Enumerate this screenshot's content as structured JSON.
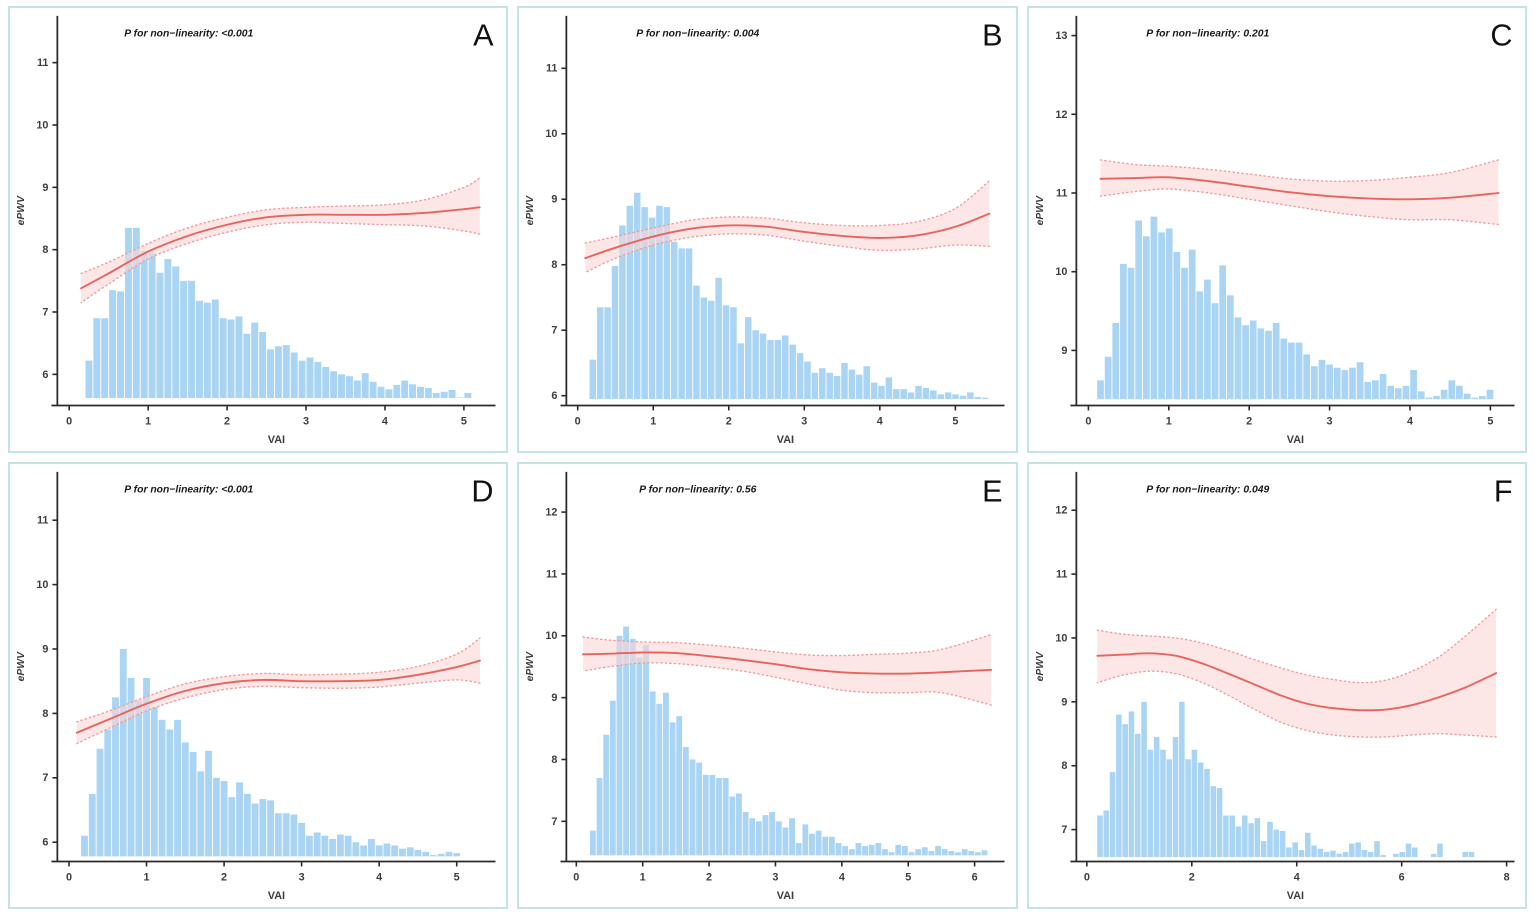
{
  "figure": {
    "background": "#ffffff",
    "panel_border_color": "#c4e3e3"
  },
  "colors": {
    "bar_fill": "#a9d4f4",
    "spline_line": "#e8635c",
    "band_fill": "#fad6d6",
    "band_opacity": 0.6,
    "band_edge": "#ee9e9e",
    "axis_line": "#2a2a2a",
    "tick_text": "#3d3d3d",
    "title_text": "#1a1a1a",
    "letter_text": "#111111"
  },
  "chart_data": [
    {
      "type": "line",
      "label": "A",
      "title": "P for non−linearity: <0.001",
      "xlabel": "VAI",
      "ylabel": "ePWV",
      "xlim": [
        -0.15,
        5.4
      ],
      "ylim": [
        5.5,
        11.75
      ],
      "xticks": [
        0,
        1,
        2,
        3,
        4,
        5
      ],
      "yticks": [
        6,
        7,
        8,
        9,
        10,
        11
      ],
      "legend": "none",
      "grid": false,
      "histogram": {
        "start": 0.25,
        "bin_width": 0.1,
        "baseline": 5.62,
        "heights": [
          6.22,
          6.9,
          6.9,
          7.35,
          7.33,
          8.35,
          8.35,
          7.98,
          7.95,
          7.63,
          7.85,
          7.73,
          7.5,
          7.5,
          7.18,
          7.15,
          7.2,
          6.9,
          6.88,
          6.93,
          6.65,
          6.83,
          6.68,
          6.4,
          6.45,
          6.47,
          6.35,
          6.22,
          6.27,
          6.2,
          6.12,
          6.05,
          6.0,
          5.97,
          5.9,
          6.02,
          5.88,
          5.8,
          5.76,
          5.83,
          5.9,
          5.84,
          5.8,
          5.78,
          5.7,
          5.72,
          5.75,
          5.63,
          5.7
        ]
      },
      "spline": {
        "x": [
          0.15,
          0.5,
          1.0,
          1.5,
          2.0,
          2.5,
          3.0,
          3.5,
          4.0,
          4.5,
          5.0,
          5.2
        ],
        "y": [
          7.38,
          7.62,
          7.97,
          8.22,
          8.4,
          8.52,
          8.56,
          8.56,
          8.56,
          8.59,
          8.65,
          8.68
        ],
        "lower": [
          7.15,
          7.45,
          7.85,
          8.1,
          8.28,
          8.4,
          8.44,
          8.42,
          8.4,
          8.38,
          8.3,
          8.25
        ],
        "upper": [
          7.62,
          7.8,
          8.1,
          8.35,
          8.52,
          8.64,
          8.68,
          8.7,
          8.72,
          8.8,
          9.0,
          9.15
        ]
      }
    },
    {
      "type": "line",
      "label": "B",
      "title": "P for non−linearity: 0.004",
      "xlabel": "VAI",
      "ylabel": "ePWV",
      "xlim": [
        -0.15,
        5.65
      ],
      "ylim": [
        5.85,
        11.8
      ],
      "xticks": [
        0,
        1,
        2,
        3,
        4,
        5
      ],
      "yticks": [
        6,
        7,
        8,
        9,
        10,
        11
      ],
      "legend": "none",
      "grid": false,
      "histogram": {
        "start": 0.2,
        "bin_width": 0.098,
        "baseline": 5.95,
        "heights": [
          6.55,
          7.35,
          7.35,
          7.98,
          8.6,
          8.9,
          9.1,
          8.88,
          8.72,
          8.9,
          8.88,
          8.35,
          8.25,
          8.25,
          7.68,
          7.5,
          7.45,
          7.8,
          7.38,
          7.35,
          6.8,
          7.2,
          7.0,
          6.95,
          6.85,
          6.85,
          6.92,
          6.78,
          6.65,
          6.52,
          6.35,
          6.42,
          6.35,
          6.3,
          6.5,
          6.4,
          6.32,
          6.45,
          6.2,
          6.15,
          6.28,
          6.1,
          6.1,
          6.05,
          6.15,
          6.12,
          6.08,
          6.02,
          6.05,
          6.02,
          6.0,
          6.05,
          5.98,
          5.97
        ]
      },
      "spline": {
        "x": [
          0.1,
          0.5,
          1.0,
          1.5,
          2.0,
          2.5,
          3.0,
          3.5,
          4.0,
          4.5,
          5.0,
          5.45
        ],
        "y": [
          8.1,
          8.26,
          8.43,
          8.55,
          8.6,
          8.58,
          8.5,
          8.44,
          8.41,
          8.45,
          8.58,
          8.78
        ],
        "lower": [
          7.88,
          8.1,
          8.3,
          8.42,
          8.47,
          8.45,
          8.36,
          8.28,
          8.22,
          8.24,
          8.3,
          8.28
        ],
        "upper": [
          8.33,
          8.43,
          8.56,
          8.68,
          8.73,
          8.71,
          8.64,
          8.6,
          8.6,
          8.66,
          8.86,
          9.28
        ]
      }
    },
    {
      "type": "line",
      "label": "C",
      "title": "P for non−linearity: 0.201",
      "xlabel": "VAI",
      "ylabel": "ePWV",
      "xlim": [
        -0.15,
        5.3
      ],
      "ylim": [
        8.3,
        13.25
      ],
      "xticks": [
        0,
        1,
        2,
        3,
        4,
        5
      ],
      "yticks": [
        9,
        10,
        11,
        12,
        13
      ],
      "legend": "none",
      "grid": false,
      "histogram": {
        "start": 0.15,
        "bin_width": 0.095,
        "baseline": 8.38,
        "heights": [
          8.62,
          8.92,
          9.35,
          10.1,
          10.05,
          10.65,
          10.45,
          10.7,
          10.5,
          10.55,
          10.25,
          10.05,
          10.28,
          9.75,
          9.9,
          9.6,
          10.08,
          9.7,
          9.42,
          9.32,
          9.38,
          9.28,
          9.25,
          9.35,
          9.15,
          9.1,
          9.1,
          8.95,
          8.8,
          8.88,
          8.82,
          8.78,
          8.75,
          8.78,
          8.85,
          8.6,
          8.62,
          8.7,
          8.55,
          8.52,
          8.55,
          8.75,
          8.48,
          8.4,
          8.42,
          8.5,
          8.62,
          8.55,
          8.45,
          8.4,
          8.42,
          8.5
        ]
      },
      "spline": {
        "x": [
          0.15,
          0.6,
          1.0,
          1.5,
          2.0,
          2.5,
          3.0,
          3.5,
          4.0,
          4.5,
          5.1
        ],
        "y": [
          11.18,
          11.19,
          11.2,
          11.15,
          11.08,
          11.01,
          10.96,
          10.93,
          10.92,
          10.94,
          11.0
        ],
        "lower": [
          10.96,
          11.02,
          11.05,
          11.0,
          10.92,
          10.84,
          10.76,
          10.7,
          10.66,
          10.66,
          10.6
        ],
        "upper": [
          11.42,
          11.36,
          11.34,
          11.3,
          11.24,
          11.18,
          11.15,
          11.16,
          11.2,
          11.26,
          11.42
        ]
      }
    },
    {
      "type": "line",
      "label": "D",
      "title": "P for non−linearity: <0.001",
      "xlabel": "VAI",
      "ylabel": "ePWV",
      "xlim": [
        -0.15,
        5.5
      ],
      "ylim": [
        5.7,
        11.75
      ],
      "xticks": [
        0,
        1,
        2,
        3,
        4,
        5
      ],
      "yticks": [
        6,
        7,
        8,
        9,
        10,
        11
      ],
      "legend": "none",
      "grid": false,
      "histogram": {
        "start": 0.2,
        "bin_width": 0.1,
        "baseline": 5.78,
        "heights": [
          6.1,
          6.75,
          7.45,
          7.75,
          8.25,
          9.0,
          8.55,
          8.2,
          8.55,
          8.1,
          7.9,
          7.75,
          7.9,
          7.55,
          7.4,
          7.1,
          7.42,
          7.0,
          6.95,
          6.7,
          6.93,
          6.75,
          6.6,
          6.67,
          6.65,
          6.45,
          6.45,
          6.43,
          6.3,
          6.1,
          6.15,
          6.1,
          6.05,
          6.12,
          6.1,
          6.0,
          5.95,
          6.05,
          5.95,
          5.98,
          5.95,
          5.9,
          5.92,
          5.88,
          5.85,
          5.8,
          5.82,
          5.85,
          5.83
        ]
      },
      "spline": {
        "x": [
          0.1,
          0.5,
          1.0,
          1.5,
          2.0,
          2.5,
          3.0,
          3.5,
          4.0,
          4.5,
          5.0,
          5.3
        ],
        "y": [
          7.7,
          7.9,
          8.15,
          8.35,
          8.47,
          8.52,
          8.5,
          8.5,
          8.52,
          8.6,
          8.72,
          8.82
        ],
        "lower": [
          7.53,
          7.76,
          8.04,
          8.24,
          8.37,
          8.42,
          8.4,
          8.39,
          8.41,
          8.47,
          8.52,
          8.47
        ],
        "upper": [
          7.87,
          8.03,
          8.26,
          8.46,
          8.57,
          8.62,
          8.6,
          8.61,
          8.64,
          8.73,
          8.92,
          9.17
        ]
      }
    },
    {
      "type": "line",
      "label": "E",
      "title": "P for non−linearity: 0.56",
      "xlabel": "VAI",
      "ylabel": "ePWV",
      "xlim": [
        -0.15,
        6.45
      ],
      "ylim": [
        6.35,
        12.65
      ],
      "xticks": [
        0,
        1,
        2,
        3,
        4,
        5,
        6
      ],
      "yticks": [
        7,
        8,
        9,
        10,
        11,
        12
      ],
      "legend": "none",
      "grid": false,
      "histogram": {
        "start": 0.25,
        "bin_width": 0.1,
        "baseline": 6.45,
        "heights": [
          6.85,
          7.7,
          8.4,
          8.95,
          10.0,
          10.15,
          9.95,
          9.65,
          9.85,
          9.1,
          8.9,
          9.08,
          8.6,
          8.7,
          8.2,
          8.0,
          7.95,
          7.75,
          7.75,
          7.7,
          7.7,
          7.4,
          7.45,
          7.15,
          7.05,
          7.0,
          7.1,
          7.15,
          7.0,
          6.9,
          7.05,
          6.65,
          6.95,
          6.8,
          6.85,
          6.75,
          6.75,
          6.65,
          6.6,
          6.55,
          6.65,
          6.6,
          6.62,
          6.65,
          6.55,
          6.5,
          6.62,
          6.6,
          6.5,
          6.55,
          6.58,
          6.52,
          6.6,
          6.55,
          6.52,
          6.5,
          6.55,
          6.52,
          6.5,
          6.53
        ]
      },
      "spline": {
        "x": [
          0.1,
          0.5,
          1.0,
          1.5,
          2.0,
          2.5,
          3.0,
          3.5,
          4.0,
          4.5,
          5.0,
          5.5,
          6.25
        ],
        "y": [
          9.7,
          9.71,
          9.73,
          9.72,
          9.67,
          9.61,
          9.54,
          9.46,
          9.41,
          9.39,
          9.39,
          9.41,
          9.45
        ],
        "lower": [
          9.43,
          9.5,
          9.56,
          9.55,
          9.5,
          9.43,
          9.33,
          9.22,
          9.12,
          9.08,
          9.08,
          9.08,
          8.88
        ],
        "upper": [
          9.98,
          9.93,
          9.9,
          9.89,
          9.85,
          9.8,
          9.74,
          9.69,
          9.68,
          9.7,
          9.72,
          9.78,
          10.02
        ]
      }
    },
    {
      "type": "line",
      "label": "F",
      "title": "P for non−linearity: 0.049",
      "xlabel": "VAI",
      "ylabel": "ePWV",
      "xlim": [
        -0.2,
        8.15
      ],
      "ylim": [
        6.5,
        12.6
      ],
      "xticks": [
        0,
        2,
        4,
        6,
        8
      ],
      "yticks": [
        7,
        8,
        9,
        10,
        11,
        12
      ],
      "legend": "none",
      "grid": false,
      "histogram": {
        "start": 0.25,
        "bin_width": 0.12,
        "baseline": 6.57,
        "heights": [
          7.22,
          7.3,
          7.9,
          8.8,
          8.65,
          8.85,
          8.5,
          9.0,
          8.25,
          8.45,
          8.25,
          8.1,
          8.45,
          9.0,
          8.1,
          8.25,
          8.05,
          7.95,
          7.68,
          7.65,
          7.22,
          7.22,
          7.05,
          7.22,
          7.1,
          7.18,
          6.82,
          7.12,
          7.0,
          6.98,
          6.72,
          6.8,
          6.68,
          6.95,
          6.75,
          6.7,
          6.65,
          6.67,
          6.62,
          6.65,
          6.78,
          6.8,
          6.68,
          6.65,
          6.82,
          6.6,
          0,
          6.62,
          6.65,
          6.78,
          6.72,
          0,
          0,
          6.62,
          6.78,
          0,
          0,
          0,
          6.65,
          6.65,
          0
        ]
      },
      "spline": {
        "x": [
          0.2,
          0.7,
          1.2,
          1.7,
          2.2,
          2.7,
          3.2,
          3.7,
          4.2,
          4.7,
          5.2,
          5.7,
          6.2,
          6.7,
          7.2,
          7.8
        ],
        "y": [
          9.72,
          9.74,
          9.76,
          9.72,
          9.6,
          9.44,
          9.27,
          9.1,
          8.97,
          8.9,
          8.87,
          8.88,
          8.95,
          9.07,
          9.22,
          9.45
        ],
        "lower": [
          9.3,
          9.42,
          9.48,
          9.44,
          9.3,
          9.1,
          8.88,
          8.68,
          8.55,
          8.48,
          8.45,
          8.45,
          8.48,
          8.5,
          8.48,
          8.45
        ],
        "upper": [
          10.12,
          10.06,
          10.03,
          10.0,
          9.92,
          9.8,
          9.66,
          9.53,
          9.42,
          9.35,
          9.3,
          9.34,
          9.48,
          9.7,
          10.02,
          10.45
        ]
      }
    }
  ]
}
